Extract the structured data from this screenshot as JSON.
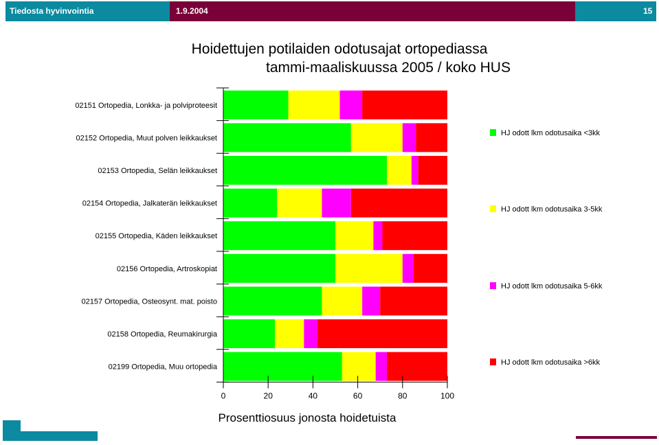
{
  "header": {
    "left_text": "Tiedosta hyvinvointia",
    "date": "1.9.2004",
    "page_number": "15",
    "colors": {
      "teal": "#0b8aa0",
      "maroon": "#7a0038"
    }
  },
  "chart_data": {
    "type": "bar",
    "orientation": "horizontal",
    "stacked": true,
    "title": "Hoidettujen potilaiden odotusajat ortopediassa",
    "subtitle": "tammi-maaliskuussa 2005 / koko HUS",
    "xlabel": "Prosenttiosuus jonosta hoidetuista",
    "xlim": [
      0,
      100
    ],
    "xticks": [
      0,
      20,
      40,
      60,
      80,
      100
    ],
    "legend_position": "right",
    "categories": [
      "02151 Ortopedia, Lonkka- ja polviproteesit",
      "02152 Ortopedia, Muut polven leikkaukset",
      "02153 Ortopedia, Selän leikkaukset",
      "02154 Ortopedia, Jalkaterän leikkaukset",
      "02155 Ortopedia, Käden leikkaukset",
      "02156 Ortopedia, Artroskopiat",
      "02157 Ortopedia, Osteosynt. mat. poisto",
      "02158 Ortopedia, Reumakirurgia",
      "02199 Ortopedia, Muu ortopedia"
    ],
    "series": [
      {
        "name": "HJ odott lkm odotusaika <3kk",
        "color": "#00ff00",
        "values": [
          29,
          57,
          73,
          24,
          50,
          50,
          44,
          23,
          53
        ]
      },
      {
        "name": "HJ odott lkm odotusaika 3-5kk",
        "color": "#ffff00",
        "values": [
          23,
          23,
          11,
          20,
          17,
          30,
          18,
          13,
          15
        ]
      },
      {
        "name": "HJ odott lkm odotusaika 5-6kk",
        "color": "#ff00ff",
        "values": [
          10,
          6,
          3,
          13,
          4,
          5,
          8,
          6,
          5
        ]
      },
      {
        "name": "HJ odott lkm odotusaika >6kk",
        "color": "#ff0000",
        "values": [
          38,
          14,
          13,
          43,
          29,
          15,
          30,
          58,
          27
        ]
      }
    ]
  }
}
